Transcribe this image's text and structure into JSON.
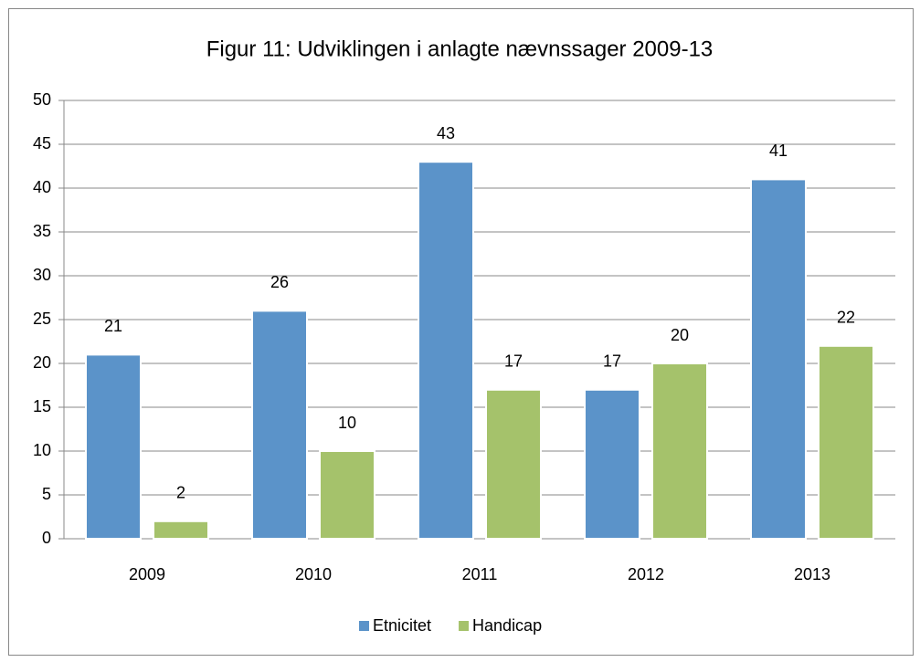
{
  "chart_data": {
    "type": "bar",
    "title": "Figur 11: Udviklingen i anlagte nævnssager 2009-13",
    "categories": [
      "2009",
      "2010",
      "2011",
      "2012",
      "2013"
    ],
    "series": [
      {
        "name": "Etnicitet",
        "color": "#5b93c9",
        "values": [
          21,
          26,
          43,
          17,
          41
        ]
      },
      {
        "name": "Handicap",
        "color": "#a5c26b",
        "values": [
          2,
          10,
          17,
          20,
          22
        ]
      }
    ],
    "ylim": [
      0,
      50
    ],
    "yticks": [
      0,
      5,
      10,
      15,
      20,
      25,
      30,
      35,
      40,
      45,
      50
    ],
    "grid": true,
    "legend": "bottom"
  }
}
